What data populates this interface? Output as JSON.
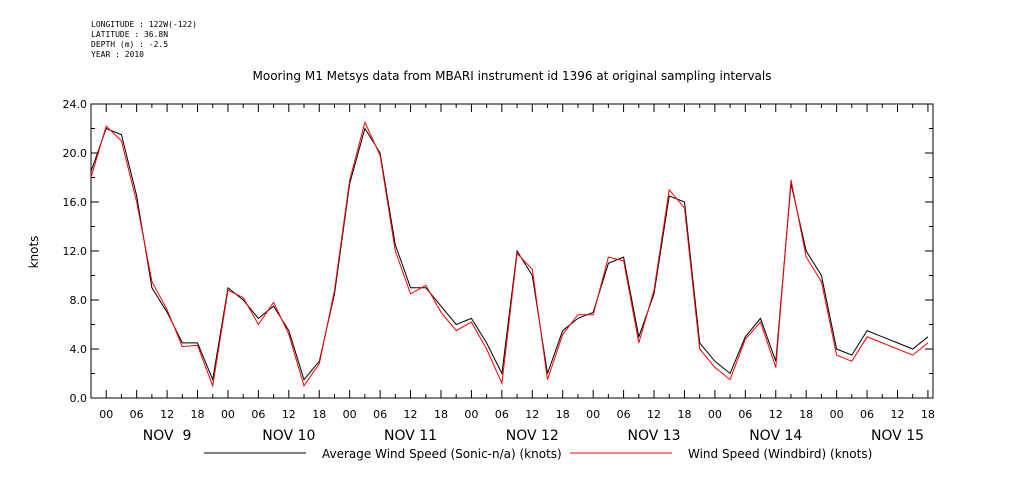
{
  "header": {
    "longitude": "LONGITUDE : 122W(-122)",
    "latitude": "LATITUDE : 36.8N",
    "depth": "DEPTH (m) : -2.5",
    "year": "YEAR : 2010"
  },
  "chart_data": {
    "type": "line",
    "title": "Mooring M1 Metsys data from MBARI instrument id 1396 at original sampling intervals",
    "ylabel": "knots",
    "xlabel": "",
    "ylim": [
      0,
      24
    ],
    "yticks": [
      "0.0",
      "4.0",
      "8.0",
      "12.0",
      "16.0",
      "20.0",
      "24.0"
    ],
    "xlim_hours": [
      -3,
      163
    ],
    "hour_ticks": [
      "00",
      "06",
      "12",
      "18",
      "00",
      "06",
      "12",
      "18",
      "00",
      "06",
      "12",
      "18",
      "00",
      "06",
      "12",
      "18",
      "00",
      "06",
      "12",
      "18",
      "00",
      "06",
      "12",
      "18",
      "00",
      "06",
      "12",
      "18"
    ],
    "day_labels": [
      "NOV  9",
      "NOV 10",
      "NOV 11",
      "NOV 12",
      "NOV 13",
      "NOV 14",
      "NOV 15"
    ],
    "x_hours": [
      -3,
      0,
      3,
      6,
      9,
      12,
      15,
      18,
      21,
      24,
      27,
      30,
      33,
      36,
      39,
      42,
      45,
      48,
      51,
      54,
      57,
      60,
      63,
      66,
      69,
      72,
      75,
      78,
      81,
      84,
      87,
      90,
      93,
      96,
      99,
      102,
      105,
      108,
      111,
      114,
      117,
      120,
      123,
      126,
      129,
      132,
      135,
      138,
      141,
      144,
      147,
      150,
      153,
      156,
      159,
      162
    ],
    "series": [
      {
        "name": "Average Wind Speed (Sonic-n/a) (knots)",
        "color": "#000000",
        "values": [
          18.5,
          22.0,
          21.5,
          16.5,
          9.0,
          7.0,
          4.5,
          4.5,
          1.5,
          9.0,
          8.0,
          6.5,
          7.5,
          5.5,
          1.5,
          3.0,
          8.5,
          17.5,
          22.0,
          20.0,
          12.5,
          9.0,
          9.0,
          7.5,
          6.0,
          6.5,
          4.5,
          2.0,
          12.0,
          10.0,
          2.0,
          5.5,
          6.5,
          7.0,
          11.0,
          11.5,
          5.0,
          8.5,
          16.5,
          16.0,
          4.5,
          3.0,
          2.0,
          5.0,
          6.5,
          3.0,
          17.5,
          12.0,
          10.0,
          4.0,
          3.5,
          5.5,
          5.0,
          4.5,
          4.0,
          5.0
        ]
      },
      {
        "name": "Wind Speed (Windbird) (knots)",
        "color": "#ff0000",
        "values": [
          18.0,
          22.2,
          21.0,
          16.0,
          9.5,
          7.2,
          4.2,
          4.3,
          1.0,
          8.8,
          8.2,
          6.0,
          7.8,
          5.2,
          1.0,
          2.8,
          8.8,
          17.8,
          22.5,
          19.8,
          12.0,
          8.5,
          9.2,
          7.0,
          5.5,
          6.2,
          4.0,
          1.2,
          11.8,
          10.5,
          1.5,
          5.2,
          6.8,
          6.8,
          11.5,
          11.2,
          4.5,
          8.8,
          17.0,
          15.5,
          4.0,
          2.5,
          1.5,
          4.8,
          6.2,
          2.5,
          17.8,
          11.5,
          9.5,
          3.5,
          3.0,
          5.0,
          4.5,
          4.0,
          3.5,
          4.5
        ]
      }
    ],
    "grid": false,
    "legend_position": "bottom"
  }
}
